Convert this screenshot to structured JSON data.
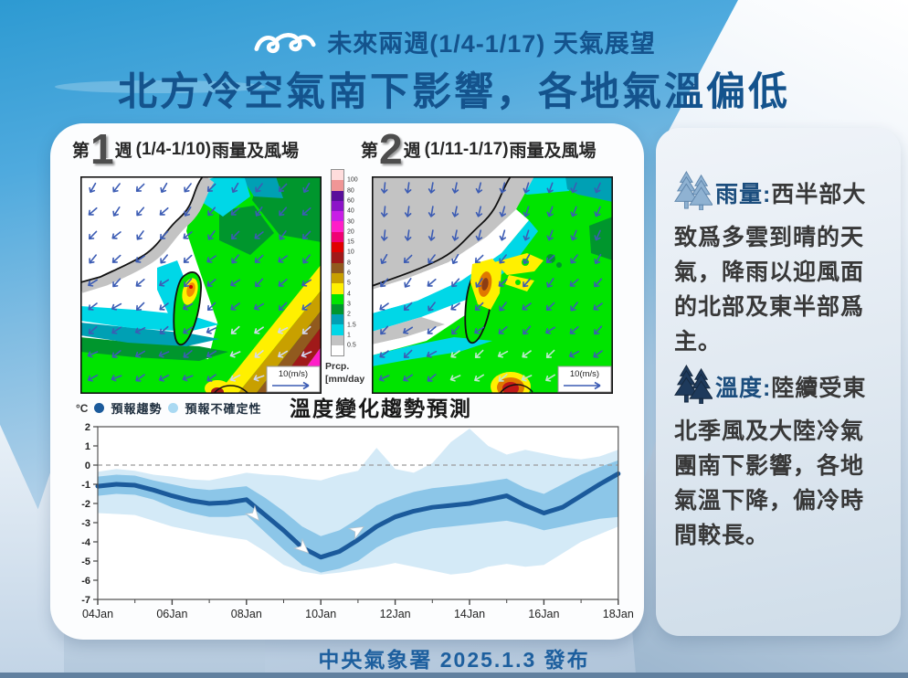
{
  "header": {
    "kicker": "未來兩週(1/4-1/17) 天氣展望",
    "title": "北方冷空氣南下影響，各地氣溫偏低"
  },
  "footer": {
    "text": "中央氣象署 2025.1.3 發布"
  },
  "icons": {
    "header": "wave-icon",
    "rain_block": "pine-trees-light-icon",
    "temp_block": "pine-trees-dark-icon"
  },
  "maps": {
    "week1": {
      "prefix": "第",
      "num": "1",
      "suffix": "週",
      "dates": "(1/4-1/10)",
      "label": "雨量及風場",
      "wind_ref": "10(m/s)"
    },
    "week2": {
      "prefix": "第",
      "num": "2",
      "suffix": "週",
      "dates": "(1/11-1/17)",
      "label": "雨量及風場",
      "wind_ref": "10(m/s)"
    },
    "colorbar": {
      "unit_title": "Prcp.",
      "unit_bracket": "[mm/day",
      "labels_top_to_bottom": [
        "100",
        "80",
        "60",
        "40",
        "30",
        "20",
        "15",
        "10",
        "8",
        "6",
        "5",
        "4",
        "3",
        "2",
        "1.5",
        "1",
        "0.5"
      ],
      "colors_top_to_bottom": [
        "#ffdcdc",
        "#f09696",
        "#5a0f9b",
        "#8c14c8",
        "#c81ee6",
        "#ff1ec8",
        "#f00073",
        "#e00000",
        "#a01919",
        "#915a1e",
        "#c8a000",
        "#fff000",
        "#00e400",
        "#00962d",
        "#00a0b4",
        "#00d7e7",
        "#c3c3c3",
        "#ffffff"
      ]
    }
  },
  "sidebar": {
    "rain": {
      "label": "雨量:",
      "text": "西半部大致爲多雲到晴的天氣，降雨以迎風面的北部及東半部爲主。"
    },
    "temp": {
      "label": "溫度:",
      "text": "陸續受東北季風及大陸冷氣團南下影響，各地氣溫下降，偏冷時間較長。"
    }
  },
  "chart_data": {
    "type": "line",
    "title": "溫度變化趨勢預測",
    "unit_label": "°C",
    "legend": [
      {
        "label": "預報趨勢",
        "color": "#1b5a9b"
      },
      {
        "label": "預報不確定性",
        "color": "#a9d9f2"
      }
    ],
    "x_tick_labels": [
      "04Jan",
      "06Jan",
      "08Jan",
      "10Jan",
      "12Jan",
      "14Jan",
      "16Jan",
      "18Jan"
    ],
    "ylim": [
      -7,
      2
    ],
    "yticks": [
      2,
      1,
      0,
      -1,
      -2,
      -3,
      -4,
      -5,
      -6,
      -7
    ],
    "zero_line": true,
    "x": [
      0,
      0.5,
      1,
      1.5,
      2,
      2.5,
      3,
      3.5,
      4,
      4.5,
      5,
      5.5,
      6,
      6.5,
      7,
      7.5,
      8,
      8.5,
      9,
      9.5,
      10,
      10.5,
      11,
      11.5,
      12,
      12.5,
      13,
      13.5,
      14
    ],
    "trend": [
      -1.1,
      -1.0,
      -1.05,
      -1.3,
      -1.6,
      -1.85,
      -2.0,
      -1.95,
      -1.8,
      -2.6,
      -3.4,
      -4.3,
      -4.8,
      -4.5,
      -3.9,
      -3.2,
      -2.7,
      -2.4,
      -2.2,
      -2.1,
      -2.0,
      -1.8,
      -1.6,
      -2.1,
      -2.5,
      -2.2,
      -1.6,
      -1.0,
      -0.45
    ],
    "band_inner": {
      "upper": [
        -0.6,
        -0.5,
        -0.55,
        -0.8,
        -1.0,
        -1.2,
        -1.3,
        -1.2,
        -1.1,
        -1.7,
        -2.4,
        -3.2,
        -3.7,
        -3.4,
        -2.8,
        -2.1,
        -1.7,
        -1.4,
        -1.2,
        -1.1,
        -1.0,
        -0.85,
        -0.7,
        -1.2,
        -1.5,
        -1.0,
        -0.5,
        -0.1,
        0.25
      ],
      "lower": [
        -1.6,
        -1.5,
        -1.55,
        -1.8,
        -2.2,
        -2.5,
        -2.7,
        -2.7,
        -2.6,
        -3.5,
        -4.4,
        -5.2,
        -5.6,
        -5.4,
        -5.0,
        -4.3,
        -3.8,
        -3.5,
        -3.3,
        -3.2,
        -3.1,
        -3.0,
        -2.9,
        -3.1,
        -3.4,
        -3.2,
        -3.0,
        -2.8,
        -2.7
      ]
    },
    "band_outer": {
      "upper": [
        -0.35,
        -0.2,
        -0.3,
        -0.5,
        -0.6,
        -0.75,
        -0.8,
        -0.6,
        -0.4,
        -0.5,
        -0.55,
        -0.7,
        -0.8,
        -0.5,
        -0.3,
        0.9,
        -0.2,
        -0.4,
        0.1,
        1.2,
        1.9,
        1.0,
        0.55,
        0.8,
        0.6,
        0.4,
        0.3,
        0.45,
        0.8
      ],
      "lower": [
        -2.5,
        -2.55,
        -2.6,
        -2.9,
        -3.2,
        -3.4,
        -3.6,
        -3.75,
        -3.9,
        -4.5,
        -5.2,
        -5.55,
        -5.7,
        -5.6,
        -5.45,
        -5.3,
        -5.1,
        -5.3,
        -5.5,
        -5.7,
        -5.6,
        -5.3,
        -5.15,
        -5.3,
        -5.2,
        -4.6,
        -4.0,
        -3.6,
        -3.2
      ]
    },
    "arrows": [
      {
        "day": 4.15,
        "value": -2.45,
        "angle": 50
      },
      {
        "day": 5.45,
        "value": -4.2,
        "angle": 42
      },
      {
        "day": 6.9,
        "value": -3.5,
        "angle": -30
      }
    ],
    "colors": {
      "trend": "#1b5a9b",
      "inner": "#8cc6e8",
      "outer": "#d4eaf7"
    }
  }
}
